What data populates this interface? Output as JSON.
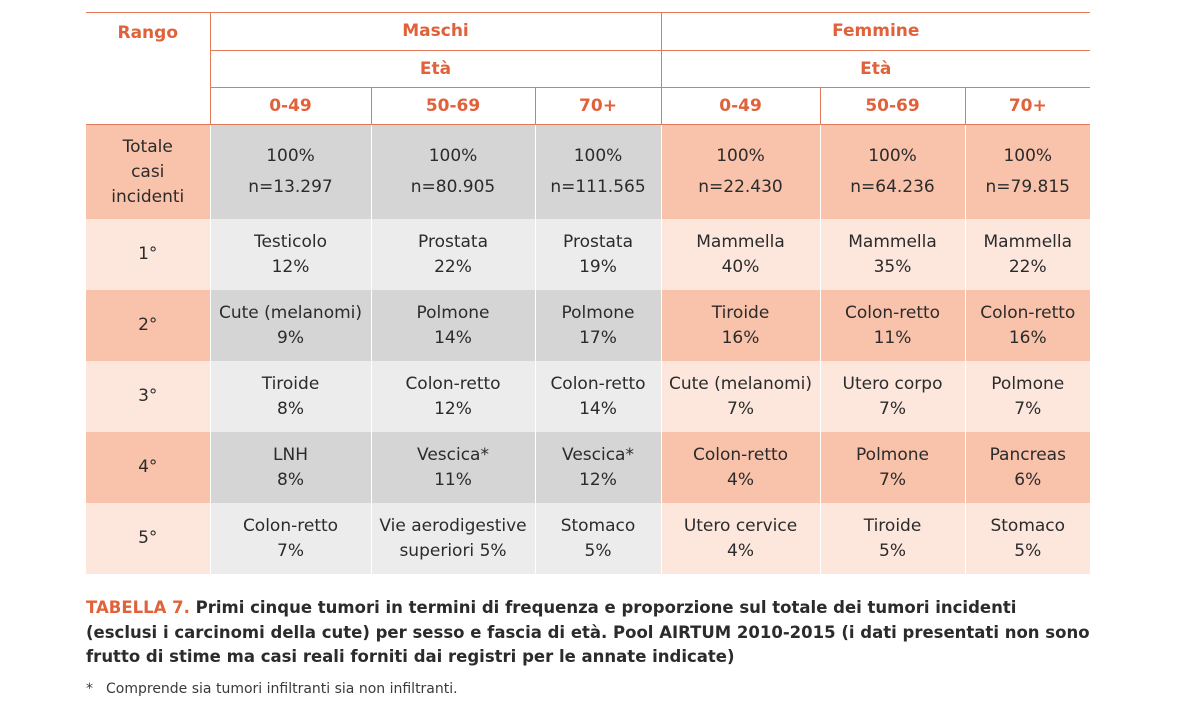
{
  "header": {
    "rank_label": "Rango",
    "groups": [
      {
        "label": "Maschi",
        "sub": "Età",
        "ages": [
          "0-49",
          "50-69",
          "70+"
        ]
      },
      {
        "label": "Femmine",
        "sub": "Età",
        "ages": [
          "0-49",
          "50-69",
          "70+"
        ]
      }
    ]
  },
  "rows": [
    {
      "rank": "Totale casi incidenti",
      "cells": [
        {
          "a": "100%",
          "b": "n=13.297"
        },
        {
          "a": "100%",
          "b": "n=80.905"
        },
        {
          "a": "100%",
          "b": "n=111.565"
        },
        {
          "a": "100%",
          "b": "n=22.430"
        },
        {
          "a": "100%",
          "b": "n=64.236"
        },
        {
          "a": "100%",
          "b": "n=79.815"
        }
      ]
    },
    {
      "rank": "1°",
      "cells": [
        {
          "a": "Testicolo",
          "b": "12%"
        },
        {
          "a": "Prostata",
          "b": "22%"
        },
        {
          "a": "Prostata",
          "b": "19%"
        },
        {
          "a": "Mammella",
          "b": "40%"
        },
        {
          "a": "Mammella",
          "b": "35%"
        },
        {
          "a": "Mammella",
          "b": "22%"
        }
      ]
    },
    {
      "rank": "2°",
      "cells": [
        {
          "a": "Cute (melanomi)",
          "b": "9%"
        },
        {
          "a": "Polmone",
          "b": "14%"
        },
        {
          "a": "Polmone",
          "b": "17%"
        },
        {
          "a": "Tiroide",
          "b": "16%"
        },
        {
          "a": "Colon-retto",
          "b": "11%"
        },
        {
          "a": "Colon-retto",
          "b": "16%"
        }
      ]
    },
    {
      "rank": "3°",
      "cells": [
        {
          "a": "Tiroide",
          "b": "8%"
        },
        {
          "a": "Colon-retto",
          "b": "12%"
        },
        {
          "a": "Colon-retto",
          "b": "14%"
        },
        {
          "a": "Cute (melanomi)",
          "b": "7%"
        },
        {
          "a": "Utero corpo",
          "b": "7%"
        },
        {
          "a": "Polmone",
          "b": "7%"
        }
      ]
    },
    {
      "rank": "4°",
      "cells": [
        {
          "a": "LNH",
          "b": "8%"
        },
        {
          "a": "Vescica*",
          "b": "11%"
        },
        {
          "a": "Vescica*",
          "b": "12%"
        },
        {
          "a": "Colon-retto",
          "b": "4%"
        },
        {
          "a": "Polmone",
          "b": "7%"
        },
        {
          "a": "Pancreas",
          "b": "6%"
        }
      ]
    },
    {
      "rank": "5°",
      "cells": [
        {
          "a": "Colon-retto",
          "b": "7%"
        },
        {
          "a": "Vie aerodigestive",
          "b": "superiori 5%"
        },
        {
          "a": "Stomaco",
          "b": "5%"
        },
        {
          "a": "Utero cervice",
          "b": "4%"
        },
        {
          "a": "Tiroide",
          "b": "5%"
        },
        {
          "a": "Stomaco",
          "b": "5%"
        }
      ]
    }
  ],
  "caption": {
    "label": "TABELLA 7.",
    "text": "Primi cinque tumori in termini di frequenza e proporzione sul totale dei tumori incidenti (esclusi i carcinomi della cute) per sesso e fascia di età. Pool AIRTUM 2010-2015 (i dati presentati non sono frutto di stime ma casi reali forniti dai registri per le annate indicate)"
  },
  "footnote": {
    "mark": "*",
    "text": "Comprende sia tumori infiltranti sia non infiltranti."
  },
  "colors": {
    "accent": "#e0613a",
    "male_light": "#ececec",
    "male_dark": "#d5d5d5",
    "female_light": "#fde7dd",
    "female_dark": "#f8c2ab"
  }
}
